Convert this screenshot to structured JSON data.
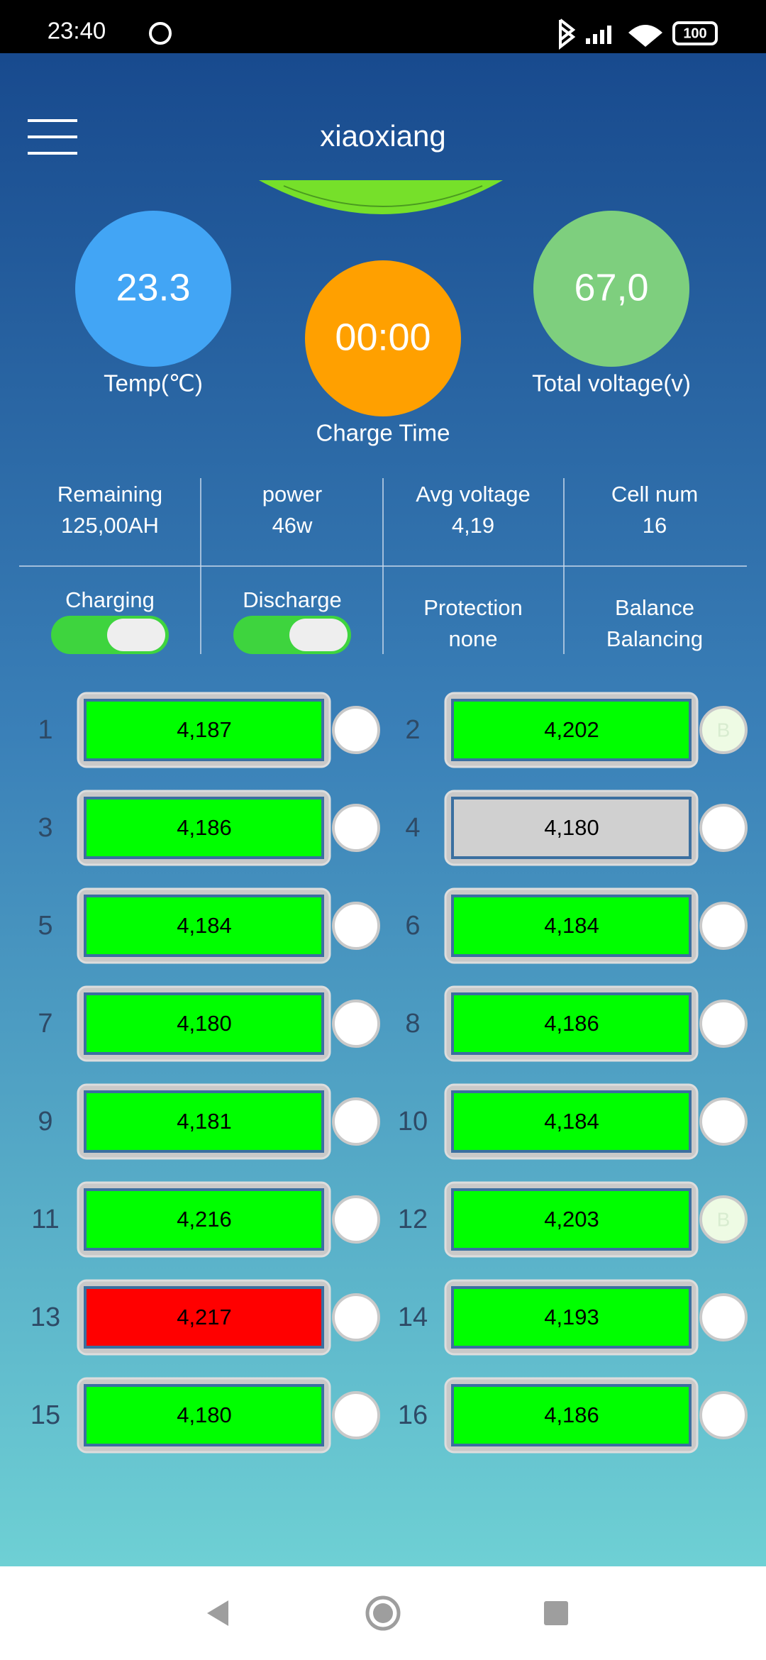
{
  "status_bar": {
    "time": "23:40",
    "battery": "100"
  },
  "header": {
    "title": "xiaoxiang"
  },
  "gauges": [
    {
      "value": "23.3",
      "label": "Temp(℃)",
      "color": "#42a5f5"
    },
    {
      "value": "00:00",
      "label": "Charge Time",
      "color": "#ffa000"
    },
    {
      "value": "67,0",
      "label": "Total voltage(v)",
      "color": "#7ecf7e"
    }
  ],
  "stats": [
    {
      "label": "Remaining",
      "value": "125,00AH"
    },
    {
      "label": "power",
      "value": "46w"
    },
    {
      "label": "Avg voltage",
      "value": "4,19"
    },
    {
      "label": "Cell num",
      "value": "16"
    }
  ],
  "switches": [
    {
      "label": "Charging",
      "on": true
    },
    {
      "label": "Discharge",
      "on": true
    }
  ],
  "status": [
    {
      "label": "Protection",
      "value": "none"
    },
    {
      "label": "Balance",
      "value": "Balancing"
    }
  ],
  "cells": [
    {
      "number": "1",
      "voltage": "4,187",
      "color": "#00ff00"
    },
    {
      "number": "2",
      "voltage": "4,202",
      "color": "#00ff00",
      "balance": "B"
    },
    {
      "number": "3",
      "voltage": "4,186",
      "color": "#00ff00"
    },
    {
      "number": "4",
      "voltage": "4,180",
      "color": "#d0d0d0"
    },
    {
      "number": "5",
      "voltage": "4,184",
      "color": "#00ff00"
    },
    {
      "number": "6",
      "voltage": "4,184",
      "color": "#00ff00"
    },
    {
      "number": "7",
      "voltage": "4,180",
      "color": "#00ff00"
    },
    {
      "number": "8",
      "voltage": "4,186",
      "color": "#00ff00"
    },
    {
      "number": "9",
      "voltage": "4,181",
      "color": "#00ff00"
    },
    {
      "number": "10",
      "voltage": "4,184",
      "color": "#00ff00"
    },
    {
      "number": "11",
      "voltage": "4,216",
      "color": "#00ff00"
    },
    {
      "number": "12",
      "voltage": "4,203",
      "color": "#00ff00",
      "balance": "B"
    },
    {
      "number": "13",
      "voltage": "4,217",
      "color": "#ff0000"
    },
    {
      "number": "14",
      "voltage": "4,193",
      "color": "#00ff00"
    },
    {
      "number": "15",
      "voltage": "4,180",
      "color": "#00ff00"
    },
    {
      "number": "16",
      "voltage": "4,186",
      "color": "#00ff00"
    }
  ]
}
